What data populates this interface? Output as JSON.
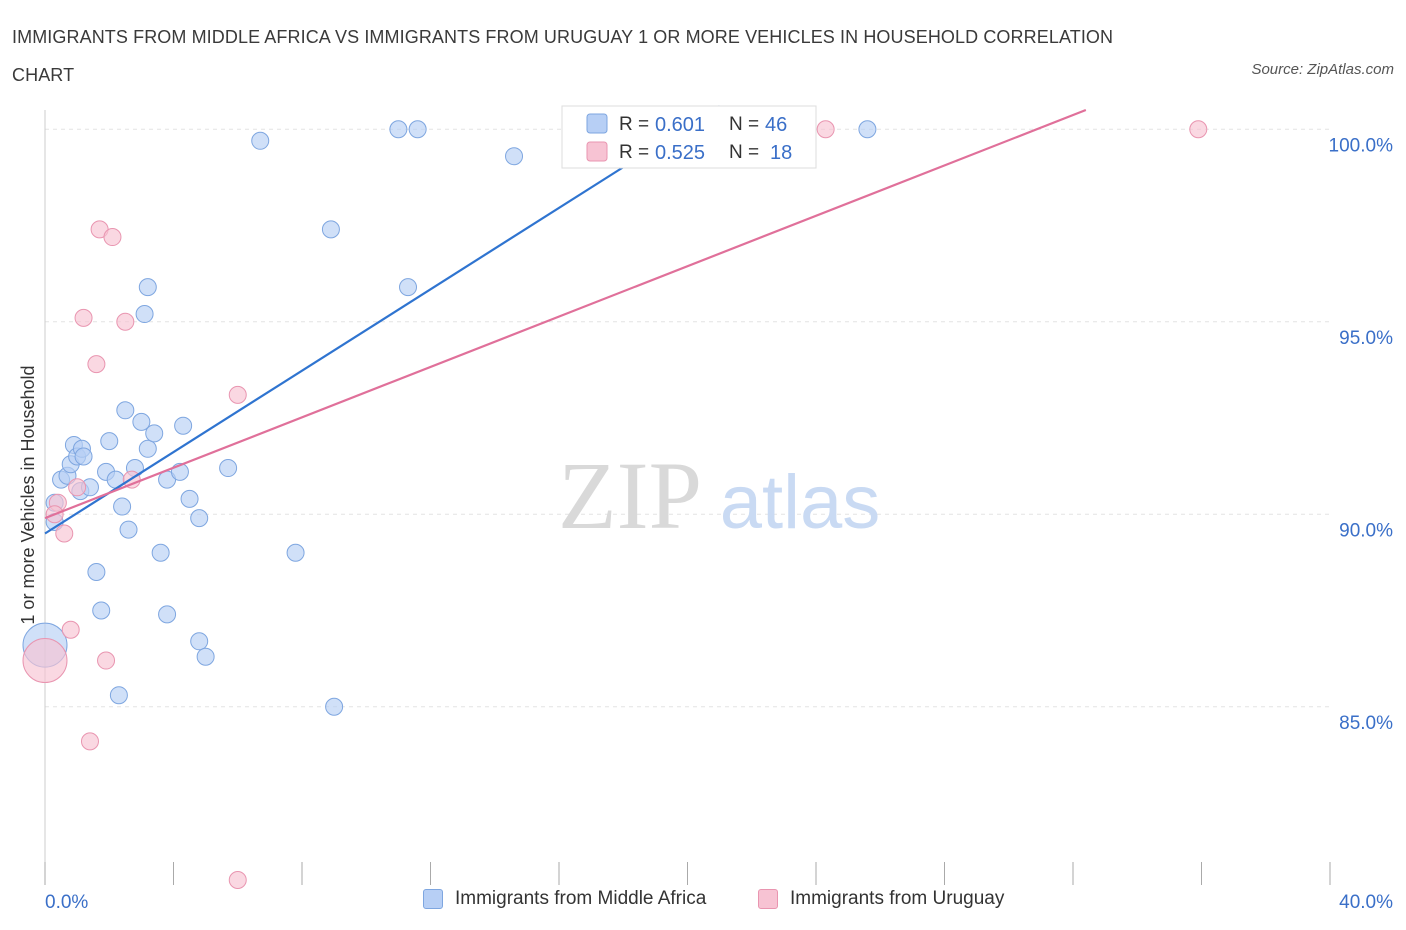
{
  "title": "IMMIGRANTS FROM MIDDLE AFRICA VS IMMIGRANTS FROM URUGUAY 1 OR MORE VEHICLES IN HOUSEHOLD CORRELATION CHART",
  "source": "Source: ZipAtlas.com",
  "watermark": {
    "zip": "ZIP",
    "atlas": "atlas"
  },
  "colors": {
    "blue_fill": "#b7cff5",
    "blue_stroke": "#7ea6e0",
    "blue_line": "#2f74d0",
    "pink_fill": "#f7c3d3",
    "pink_stroke": "#e995b0",
    "pink_line": "#e0709a",
    "tick_label": "#3a6fc8"
  },
  "legend_top": [
    {
      "r_label": "R =",
      "r_value": "0.601",
      "n_label": "N =",
      "n_value": "46"
    },
    {
      "r_label": "R =",
      "r_value": "0.525",
      "n_label": "N =",
      "n_value": "18"
    }
  ],
  "legend_bottom": [
    "Immigrants from Middle Africa",
    "Immigrants from Uruguay"
  ],
  "chart_data": {
    "type": "scatter",
    "title": "IMMIGRANTS FROM MIDDLE AFRICA VS IMMIGRANTS FROM URUGUAY 1 OR MORE VEHICLES IN HOUSEHOLD CORRELATION CHART",
    "xlabel": "",
    "ylabel": "1 or more Vehicles in Household",
    "xlim": [
      0,
      40
    ],
    "ylim": [
      80.5,
      100.5
    ],
    "x_tick_labels": [
      "0.0%",
      "40.0%"
    ],
    "y_ticks": [
      85,
      90,
      95,
      100
    ],
    "y_tick_labels": [
      "85.0%",
      "90.0%",
      "95.0%",
      "100.0%"
    ],
    "grid": true,
    "legend": "top-center",
    "series": [
      {
        "name": "Immigrants from Middle Africa",
        "R": 0.601,
        "N": 46,
        "trend": {
          "x": [
            0.0,
            21.0
          ],
          "y": [
            89.5,
            100.6
          ]
        },
        "points": [
          {
            "x": 0.0,
            "y": 86.6,
            "big": true
          },
          {
            "x": 0.3,
            "y": 89.8
          },
          {
            "x": 0.3,
            "y": 90.3
          },
          {
            "x": 0.5,
            "y": 90.9
          },
          {
            "x": 0.7,
            "y": 91.0
          },
          {
            "x": 0.8,
            "y": 91.3
          },
          {
            "x": 0.9,
            "y": 91.8
          },
          {
            "x": 1.0,
            "y": 91.5
          },
          {
            "x": 1.1,
            "y": 90.6
          },
          {
            "x": 1.15,
            "y": 91.7
          },
          {
            "x": 1.2,
            "y": 91.5
          },
          {
            "x": 1.4,
            "y": 90.7
          },
          {
            "x": 1.6,
            "y": 88.5
          },
          {
            "x": 1.75,
            "y": 87.5
          },
          {
            "x": 1.9,
            "y": 91.1
          },
          {
            "x": 2.0,
            "y": 91.9
          },
          {
            "x": 2.2,
            "y": 90.9
          },
          {
            "x": 2.3,
            "y": 85.3
          },
          {
            "x": 2.4,
            "y": 90.2
          },
          {
            "x": 2.5,
            "y": 92.7
          },
          {
            "x": 2.6,
            "y": 89.6
          },
          {
            "x": 2.8,
            "y": 91.2
          },
          {
            "x": 3.0,
            "y": 92.4
          },
          {
            "x": 3.1,
            "y": 95.2
          },
          {
            "x": 3.2,
            "y": 91.7
          },
          {
            "x": 3.2,
            "y": 95.9
          },
          {
            "x": 3.4,
            "y": 92.1
          },
          {
            "x": 3.6,
            "y": 89.0
          },
          {
            "x": 3.8,
            "y": 87.4
          },
          {
            "x": 3.8,
            "y": 90.9
          },
          {
            "x": 4.2,
            "y": 91.1
          },
          {
            "x": 4.3,
            "y": 92.3
          },
          {
            "x": 4.5,
            "y": 90.4
          },
          {
            "x": 4.8,
            "y": 89.9
          },
          {
            "x": 4.8,
            "y": 86.7
          },
          {
            "x": 5.0,
            "y": 86.3
          },
          {
            "x": 5.7,
            "y": 91.2
          },
          {
            "x": 6.7,
            "y": 99.7
          },
          {
            "x": 7.8,
            "y": 89.0
          },
          {
            "x": 8.9,
            "y": 97.4
          },
          {
            "x": 9.0,
            "y": 85.0
          },
          {
            "x": 11.0,
            "y": 100.0
          },
          {
            "x": 11.6,
            "y": 100.0
          },
          {
            "x": 11.3,
            "y": 95.9
          },
          {
            "x": 14.6,
            "y": 99.3
          },
          {
            "x": 25.6,
            "y": 100.0
          }
        ]
      },
      {
        "name": "Immigrants from Uruguay",
        "R": 0.525,
        "N": 18,
        "trend": {
          "x": [
            0.0,
            32.4
          ],
          "y": [
            89.9,
            100.5
          ]
        },
        "points": [
          {
            "x": 0.0,
            "y": 86.2,
            "big": true
          },
          {
            "x": 0.4,
            "y": 90.3
          },
          {
            "x": 0.6,
            "y": 89.5
          },
          {
            "x": 0.8,
            "y": 87.0
          },
          {
            "x": 1.0,
            "y": 90.7
          },
          {
            "x": 1.2,
            "y": 95.1
          },
          {
            "x": 1.4,
            "y": 84.1
          },
          {
            "x": 1.6,
            "y": 93.9
          },
          {
            "x": 1.7,
            "y": 97.4
          },
          {
            "x": 1.9,
            "y": 86.2
          },
          {
            "x": 2.1,
            "y": 97.2
          },
          {
            "x": 2.5,
            "y": 95.0
          },
          {
            "x": 2.7,
            "y": 90.9
          },
          {
            "x": 6.0,
            "y": 93.1
          },
          {
            "x": 6.0,
            "y": 80.5
          },
          {
            "x": 24.3,
            "y": 100.0
          },
          {
            "x": 35.9,
            "y": 100.0
          },
          {
            "x": 0.3,
            "y": 90.0
          }
        ]
      }
    ]
  }
}
